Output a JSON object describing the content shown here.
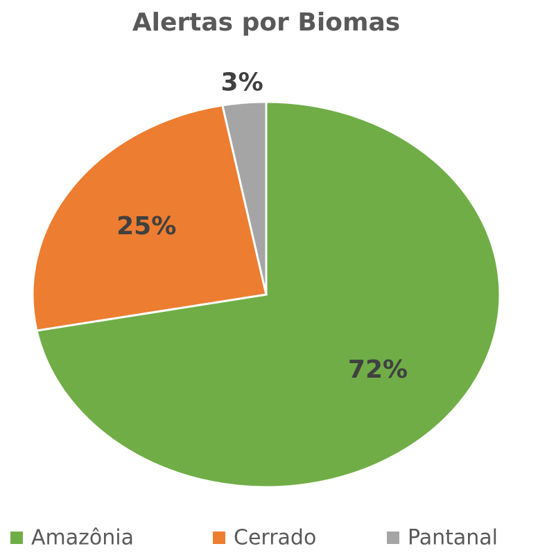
{
  "chart_data": {
    "type": "pie",
    "title": "Alertas por Biomas",
    "categories": [
      "Amazônia",
      "Cerrado",
      "Pantanal"
    ],
    "values": [
      72,
      25,
      3
    ],
    "value_labels": [
      "72%",
      "25%",
      "3%"
    ],
    "colors": [
      "#70ad47",
      "#ed7d31",
      "#a5a5a5"
    ],
    "legend": "bottom"
  }
}
